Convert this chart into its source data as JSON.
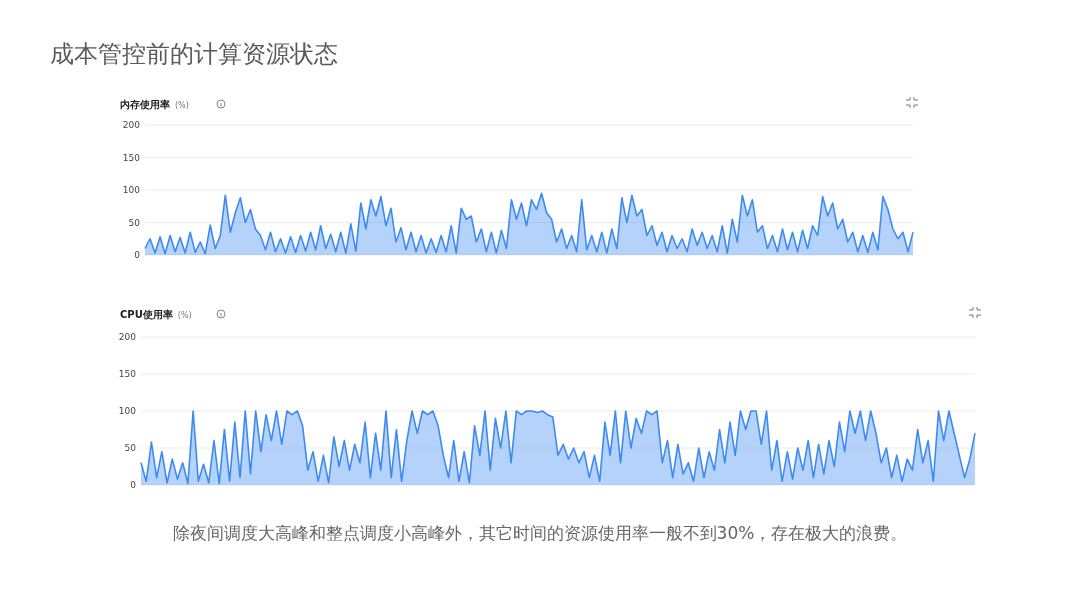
{
  "chart_data": [
    {
      "type": "other",
      "title": "成本管控前的计算资源状态",
      "annotations": [
        "除夜间调度大高峰和整点调度小高峰外，其它时间的资源使用率一般不到30%，存在极大的浪费。"
      ]
    },
    {
      "type": "area",
      "title": "内存使用率",
      "ylabel": "(%)",
      "ylim": [
        0,
        200
      ],
      "yticks": [
        0,
        50,
        100,
        150,
        200
      ],
      "grid": "y",
      "categories": [
        null,
        null,
        null,
        null,
        null,
        null,
        null,
        null,
        null,
        null,
        null,
        null,
        null,
        null,
        null,
        null,
        null,
        null,
        null,
        null,
        null,
        null,
        null,
        null,
        null,
        null,
        null,
        null,
        null,
        null,
        null,
        null,
        null,
        null,
        null,
        null,
        null,
        null,
        null,
        null,
        null,
        null,
        null,
        null,
        null,
        null,
        null,
        null,
        null,
        null,
        null,
        null,
        null,
        null,
        null,
        null,
        null,
        null,
        null,
        null,
        null,
        null,
        null,
        null,
        null,
        null,
        null,
        null,
        null,
        null,
        null,
        null,
        null,
        null,
        null,
        null,
        null,
        null,
        null,
        null,
        null,
        null,
        null,
        null,
        null,
        null,
        null,
        null,
        null,
        null,
        null,
        null,
        null,
        null,
        null,
        null,
        null,
        null,
        null,
        null,
        null,
        null,
        null,
        null,
        null,
        null,
        null,
        null,
        null,
        null,
        null,
        null,
        null,
        null,
        null,
        null,
        null,
        null,
        null,
        null,
        null,
        null,
        null,
        null,
        null,
        null,
        null,
        null,
        null,
        null,
        null,
        null,
        null,
        null,
        null,
        null,
        null,
        null,
        null,
        null,
        null,
        null,
        null,
        null,
        null,
        null,
        null,
        null,
        null,
        null,
        null,
        null,
        null,
        null
      ],
      "series": [
        {
          "color": "#3d8bf2",
          "values": [
            10,
            25,
            3,
            28,
            2,
            30,
            5,
            27,
            3,
            35,
            4,
            20,
            2,
            46,
            10,
            30,
            92,
            35,
            65,
            88,
            50,
            70,
            40,
            30,
            8,
            35,
            5,
            25,
            3,
            28,
            4,
            30,
            6,
            35,
            8,
            45,
            10,
            32,
            5,
            35,
            3,
            48,
            6,
            80,
            40,
            85,
            60,
            90,
            45,
            72,
            20,
            42,
            8,
            35,
            5,
            30,
            3,
            25,
            4,
            30,
            5,
            45,
            3,
            72,
            55,
            60,
            20,
            40,
            5,
            35,
            3,
            38,
            10,
            85,
            55,
            80,
            45,
            85,
            70,
            95,
            65,
            55,
            20,
            40,
            10,
            30,
            5,
            85,
            8,
            30,
            5,
            35,
            3,
            40,
            10,
            88,
            50,
            92,
            60,
            70,
            30,
            45,
            15,
            35,
            5,
            30,
            10,
            25,
            5,
            40,
            15,
            35,
            10,
            30,
            5,
            45,
            3,
            55,
            20,
            92,
            60,
            85,
            35,
            45,
            10,
            30,
            5,
            40,
            8,
            35,
            5,
            38,
            10,
            45,
            30,
            90,
            60,
            80,
            40,
            55,
            20,
            35,
            5,
            30,
            4,
            35,
            8,
            90,
            70,
            40,
            25,
            35,
            5,
            35
          ]
        }
      ]
    },
    {
      "type": "area",
      "title": "CPU使用率",
      "ylabel": "(%)",
      "ylim": [
        0,
        200
      ],
      "yticks": [
        0,
        50,
        100,
        150,
        200
      ],
      "grid": "y",
      "categories": [
        null,
        null,
        null,
        null,
        null,
        null,
        null,
        null,
        null,
        null,
        null,
        null,
        null,
        null,
        null,
        null,
        null,
        null,
        null,
        null,
        null,
        null,
        null,
        null,
        null,
        null,
        null,
        null,
        null,
        null,
        null,
        null,
        null,
        null,
        null,
        null,
        null,
        null,
        null,
        null,
        null,
        null,
        null,
        null,
        null,
        null,
        null,
        null,
        null,
        null,
        null,
        null,
        null,
        null,
        null,
        null,
        null,
        null,
        null,
        null,
        null,
        null,
        null,
        null,
        null,
        null,
        null,
        null,
        null,
        null,
        null,
        null,
        null,
        null,
        null,
        null,
        null,
        null,
        null,
        null,
        null,
        null,
        null,
        null,
        null,
        null,
        null,
        null,
        null,
        null,
        null,
        null,
        null,
        null,
        null,
        null,
        null,
        null,
        null,
        null,
        null,
        null,
        null,
        null,
        null,
        null,
        null,
        null,
        null,
        null,
        null,
        null,
        null,
        null,
        null,
        null,
        null,
        null,
        null,
        null,
        null,
        null,
        null,
        null,
        null,
        null,
        null,
        null,
        null,
        null,
        null,
        null,
        null,
        null,
        null,
        null,
        null,
        null,
        null,
        null,
        null,
        null,
        null,
        null,
        null,
        null,
        null,
        null,
        null,
        null,
        null,
        null,
        null,
        null,
        null,
        null,
        null,
        null,
        null,
        null,
        null
      ],
      "series": [
        {
          "color": "#3d8bf2",
          "values": [
            30,
            5,
            58,
            10,
            45,
            3,
            35,
            8,
            30,
            2,
            100,
            5,
            28,
            3,
            60,
            2,
            75,
            5,
            85,
            10,
            100,
            15,
            100,
            45,
            95,
            60,
            100,
            55,
            100,
            95,
            100,
            80,
            20,
            45,
            5,
            40,
            3,
            65,
            25,
            60,
            20,
            55,
            30,
            85,
            10,
            70,
            20,
            100,
            10,
            75,
            5,
            60,
            100,
            70,
            100,
            95,
            100,
            80,
            40,
            10,
            60,
            5,
            45,
            3,
            80,
            40,
            100,
            20,
            90,
            50,
            100,
            30,
            100,
            95,
            100,
            100,
            98,
            100,
            95,
            92,
            40,
            55,
            35,
            50,
            30,
            45,
            10,
            40,
            5,
            85,
            40,
            100,
            30,
            100,
            50,
            90,
            70,
            100,
            95,
            100,
            30,
            60,
            10,
            55,
            15,
            30,
            5,
            50,
            10,
            45,
            20,
            75,
            30,
            85,
            40,
            100,
            75,
            100,
            100,
            55,
            100,
            20,
            60,
            5,
            45,
            8,
            50,
            20,
            60,
            10,
            55,
            15,
            60,
            25,
            85,
            45,
            100,
            70,
            100,
            60,
            100,
            70,
            30,
            50,
            10,
            40,
            5,
            35,
            20,
            75,
            30,
            60,
            5,
            100,
            60,
            100,
            70,
            40,
            10,
            35,
            70
          ]
        }
      ]
    }
  ]
}
